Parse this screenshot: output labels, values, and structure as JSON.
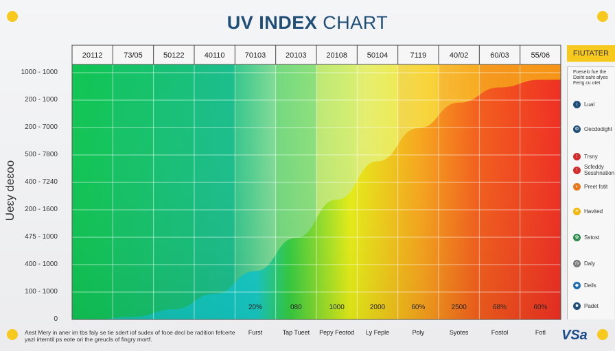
{
  "title": {
    "strong": "UV INDEX",
    "rest": " CHART"
  },
  "ylabel": "Ueɛy deɛoo",
  "bottom_note": "Aest Mery in aner im tbs faly se tie sdert iof sudex of fooe decl be radition fefcerte yazi irterntil ps eote ori the greucls of fingry mortf.",
  "brand": "VSa",
  "legend": {
    "header": "FIUTATER",
    "note": "Foeselo fue the Daiht oaht afyes Fertg cu otet",
    "items": [
      {
        "label": "Lual",
        "icon": "info-icon",
        "color": "#1f4f79",
        "glyph": "i"
      },
      {
        "label": "Oecdodight",
        "icon": "settings-icon",
        "color": "#1f4f79",
        "glyph": "⚙"
      },
      {
        "label": "Trsny",
        "icon": "alert-icon",
        "color": "#d62b2b",
        "glyph": "!"
      },
      {
        "label": "Scfeddy Sesshnation",
        "icon": "warning-icon",
        "color": "#d62b2b",
        "glyph": "!"
      },
      {
        "label": "Preet fotit",
        "icon": "half-circle-icon",
        "color": "#e87a1e",
        "glyph": "◐"
      },
      {
        "label": "Havited",
        "icon": "sun-icon",
        "color": "#f2b705",
        "glyph": "☀"
      },
      {
        "label": "Sstost",
        "icon": "leaf-icon",
        "color": "#2a8c4a",
        "glyph": "✿"
      },
      {
        "label": "Daly",
        "icon": "clock-icon",
        "color": "#777777",
        "glyph": "◷"
      },
      {
        "label": "Deils",
        "icon": "drop-icon",
        "color": "#1f6fb0",
        "glyph": "◆"
      },
      {
        "label": "Padet",
        "icon": "square-icon",
        "color": "#1f4f79",
        "glyph": "■"
      }
    ]
  },
  "chart_data": {
    "type": "area",
    "title": "UV INDEX CHART",
    "ylabel": "Ueɛy deɛoo",
    "categories": [
      "20112",
      "73/05",
      "50122",
      "40110",
      "70103",
      "20103",
      "20108",
      "50104",
      "7119",
      "40/02",
      "60/03",
      "55/06"
    ],
    "y_tick_labels": [
      "1000 - 1000",
      "200 - 1000",
      "200 - 7000",
      "500 - 7800",
      "400 - 7240",
      "200 - 1600",
      "475 - 1000",
      "400 - 1000",
      "100 - 1000",
      "0"
    ],
    "bottom_labels": [
      "",
      "",
      "",
      "",
      "Furst",
      "Tap Tueet",
      "Pepy Feotod",
      "Ly Feple",
      "Poly",
      "Syotes",
      "Fostol",
      "Fotl"
    ],
    "cell_values": [
      "",
      "",
      "",
      "",
      "20%",
      "080",
      "1000",
      "2000",
      "60%",
      "2500",
      "68%",
      "60%"
    ],
    "curve": [
      0,
      1,
      4,
      10,
      19,
      32,
      47,
      62,
      75,
      85,
      91,
      94
    ],
    "colors": [
      "#0fc94f",
      "#14c264",
      "#17bd78",
      "#1ab98c",
      "#6fd98e",
      "#2fcc3d",
      "#d9ee2b",
      "#f5e52a",
      "#f7a51c",
      "#f45d1c",
      "#ee2624",
      "#f0362a"
    ],
    "ylim": [
      0,
      100
    ],
    "grid": true
  }
}
